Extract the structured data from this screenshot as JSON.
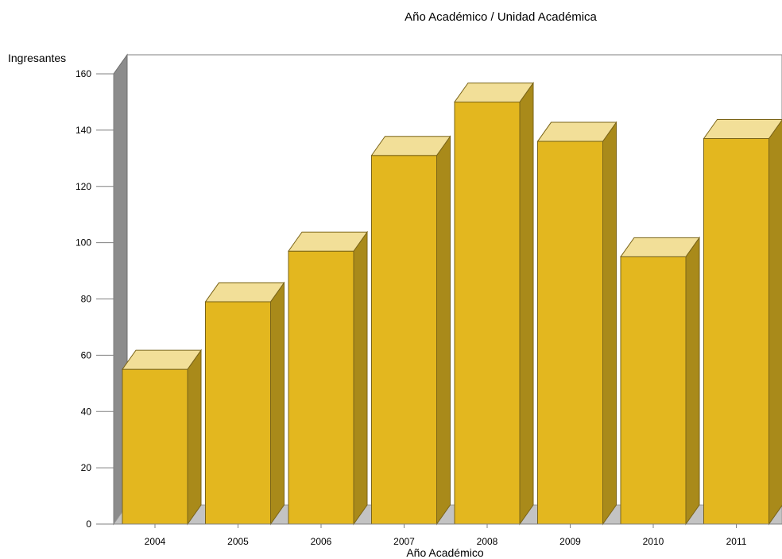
{
  "chart_data": {
    "type": "bar",
    "title": "Año Académico / Unidad Académica",
    "xlabel": "Año Académico",
    "ylabel": "Ingresantes",
    "ylim": [
      0,
      160
    ],
    "yticks": [
      0,
      20,
      40,
      60,
      80,
      100,
      120,
      140,
      160
    ],
    "categories": [
      "2004",
      "2005",
      "2006",
      "2007",
      "2008",
      "2009",
      "2010",
      "2011"
    ],
    "values": [
      55,
      79,
      97,
      131,
      150,
      136,
      95,
      137
    ],
    "style": "3d",
    "grid": false,
    "legend": "none",
    "colors": {
      "bar_front": "#E3B71F",
      "bar_top": "#F2DF98",
      "bar_side": "#A98A1A",
      "bar_edge": "#7A6418",
      "back_wall": "#FFFFFF",
      "left_wall": "#8C8C8C",
      "floor": "#C3C3C3",
      "axis": "#808080"
    }
  }
}
